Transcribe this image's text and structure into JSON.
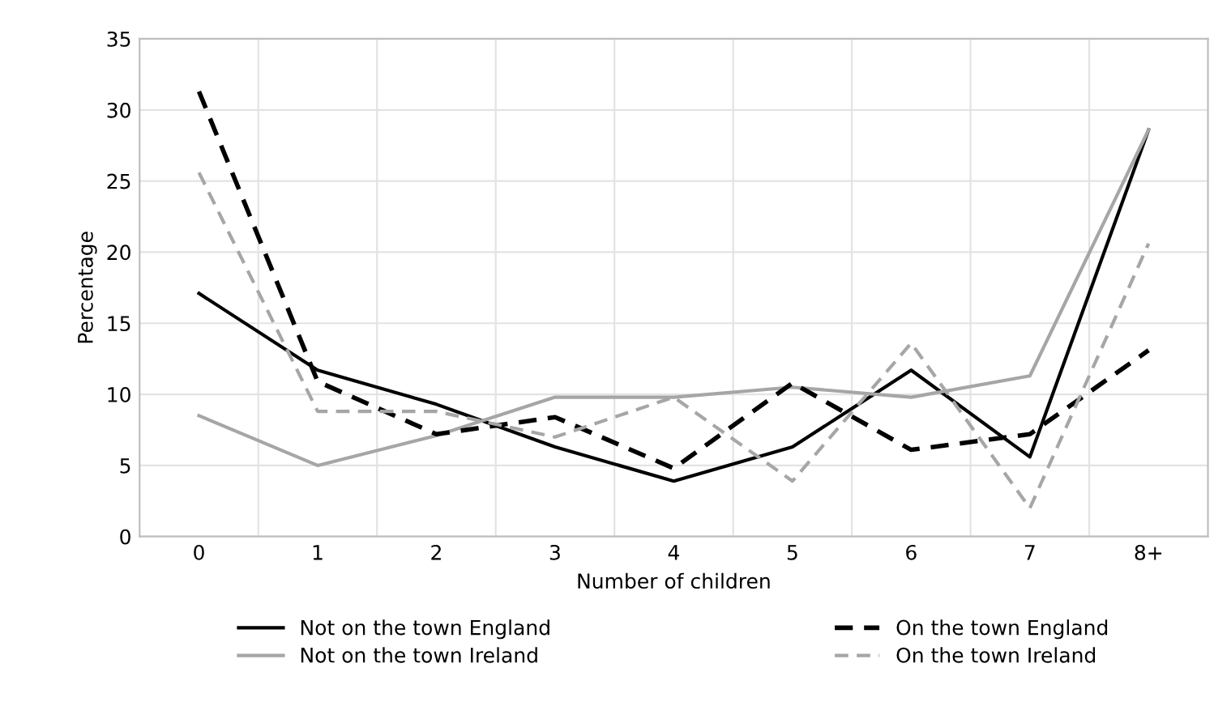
{
  "chart_data": {
    "type": "line",
    "xlabel": "Number of children",
    "ylabel": "Percentage",
    "categories": [
      "0",
      "1",
      "2",
      "3",
      "4",
      "5",
      "6",
      "7",
      "8+"
    ],
    "ylim": [
      0,
      35
    ],
    "yticks": [
      0,
      5,
      10,
      15,
      20,
      25,
      30,
      35
    ],
    "grid": true,
    "legend": "bottom",
    "series": [
      {
        "name": "Not on the town England",
        "color": "#000000",
        "line_style": "solid",
        "values": [
          17.1,
          11.7,
          9.3,
          6.3,
          3.9,
          6.3,
          11.7,
          5.6,
          28.6
        ]
      },
      {
        "name": "Not on the town Ireland",
        "color": "#a6a6a6",
        "line_style": "solid",
        "values": [
          8.5,
          5.0,
          7.1,
          9.8,
          9.8,
          10.5,
          9.8,
          11.3,
          28.6
        ]
      },
      {
        "name": "On the town England",
        "color": "#000000",
        "line_style": "dashed",
        "values": [
          31.3,
          10.9,
          7.2,
          8.4,
          4.8,
          10.8,
          6.1,
          7.2,
          13.1
        ]
      },
      {
        "name": "On the town Ireland",
        "color": "#a6a6a6",
        "line_style": "dashed",
        "values": [
          25.6,
          8.8,
          8.8,
          7.0,
          9.8,
          3.9,
          13.6,
          2.0,
          20.6
        ]
      }
    ]
  }
}
